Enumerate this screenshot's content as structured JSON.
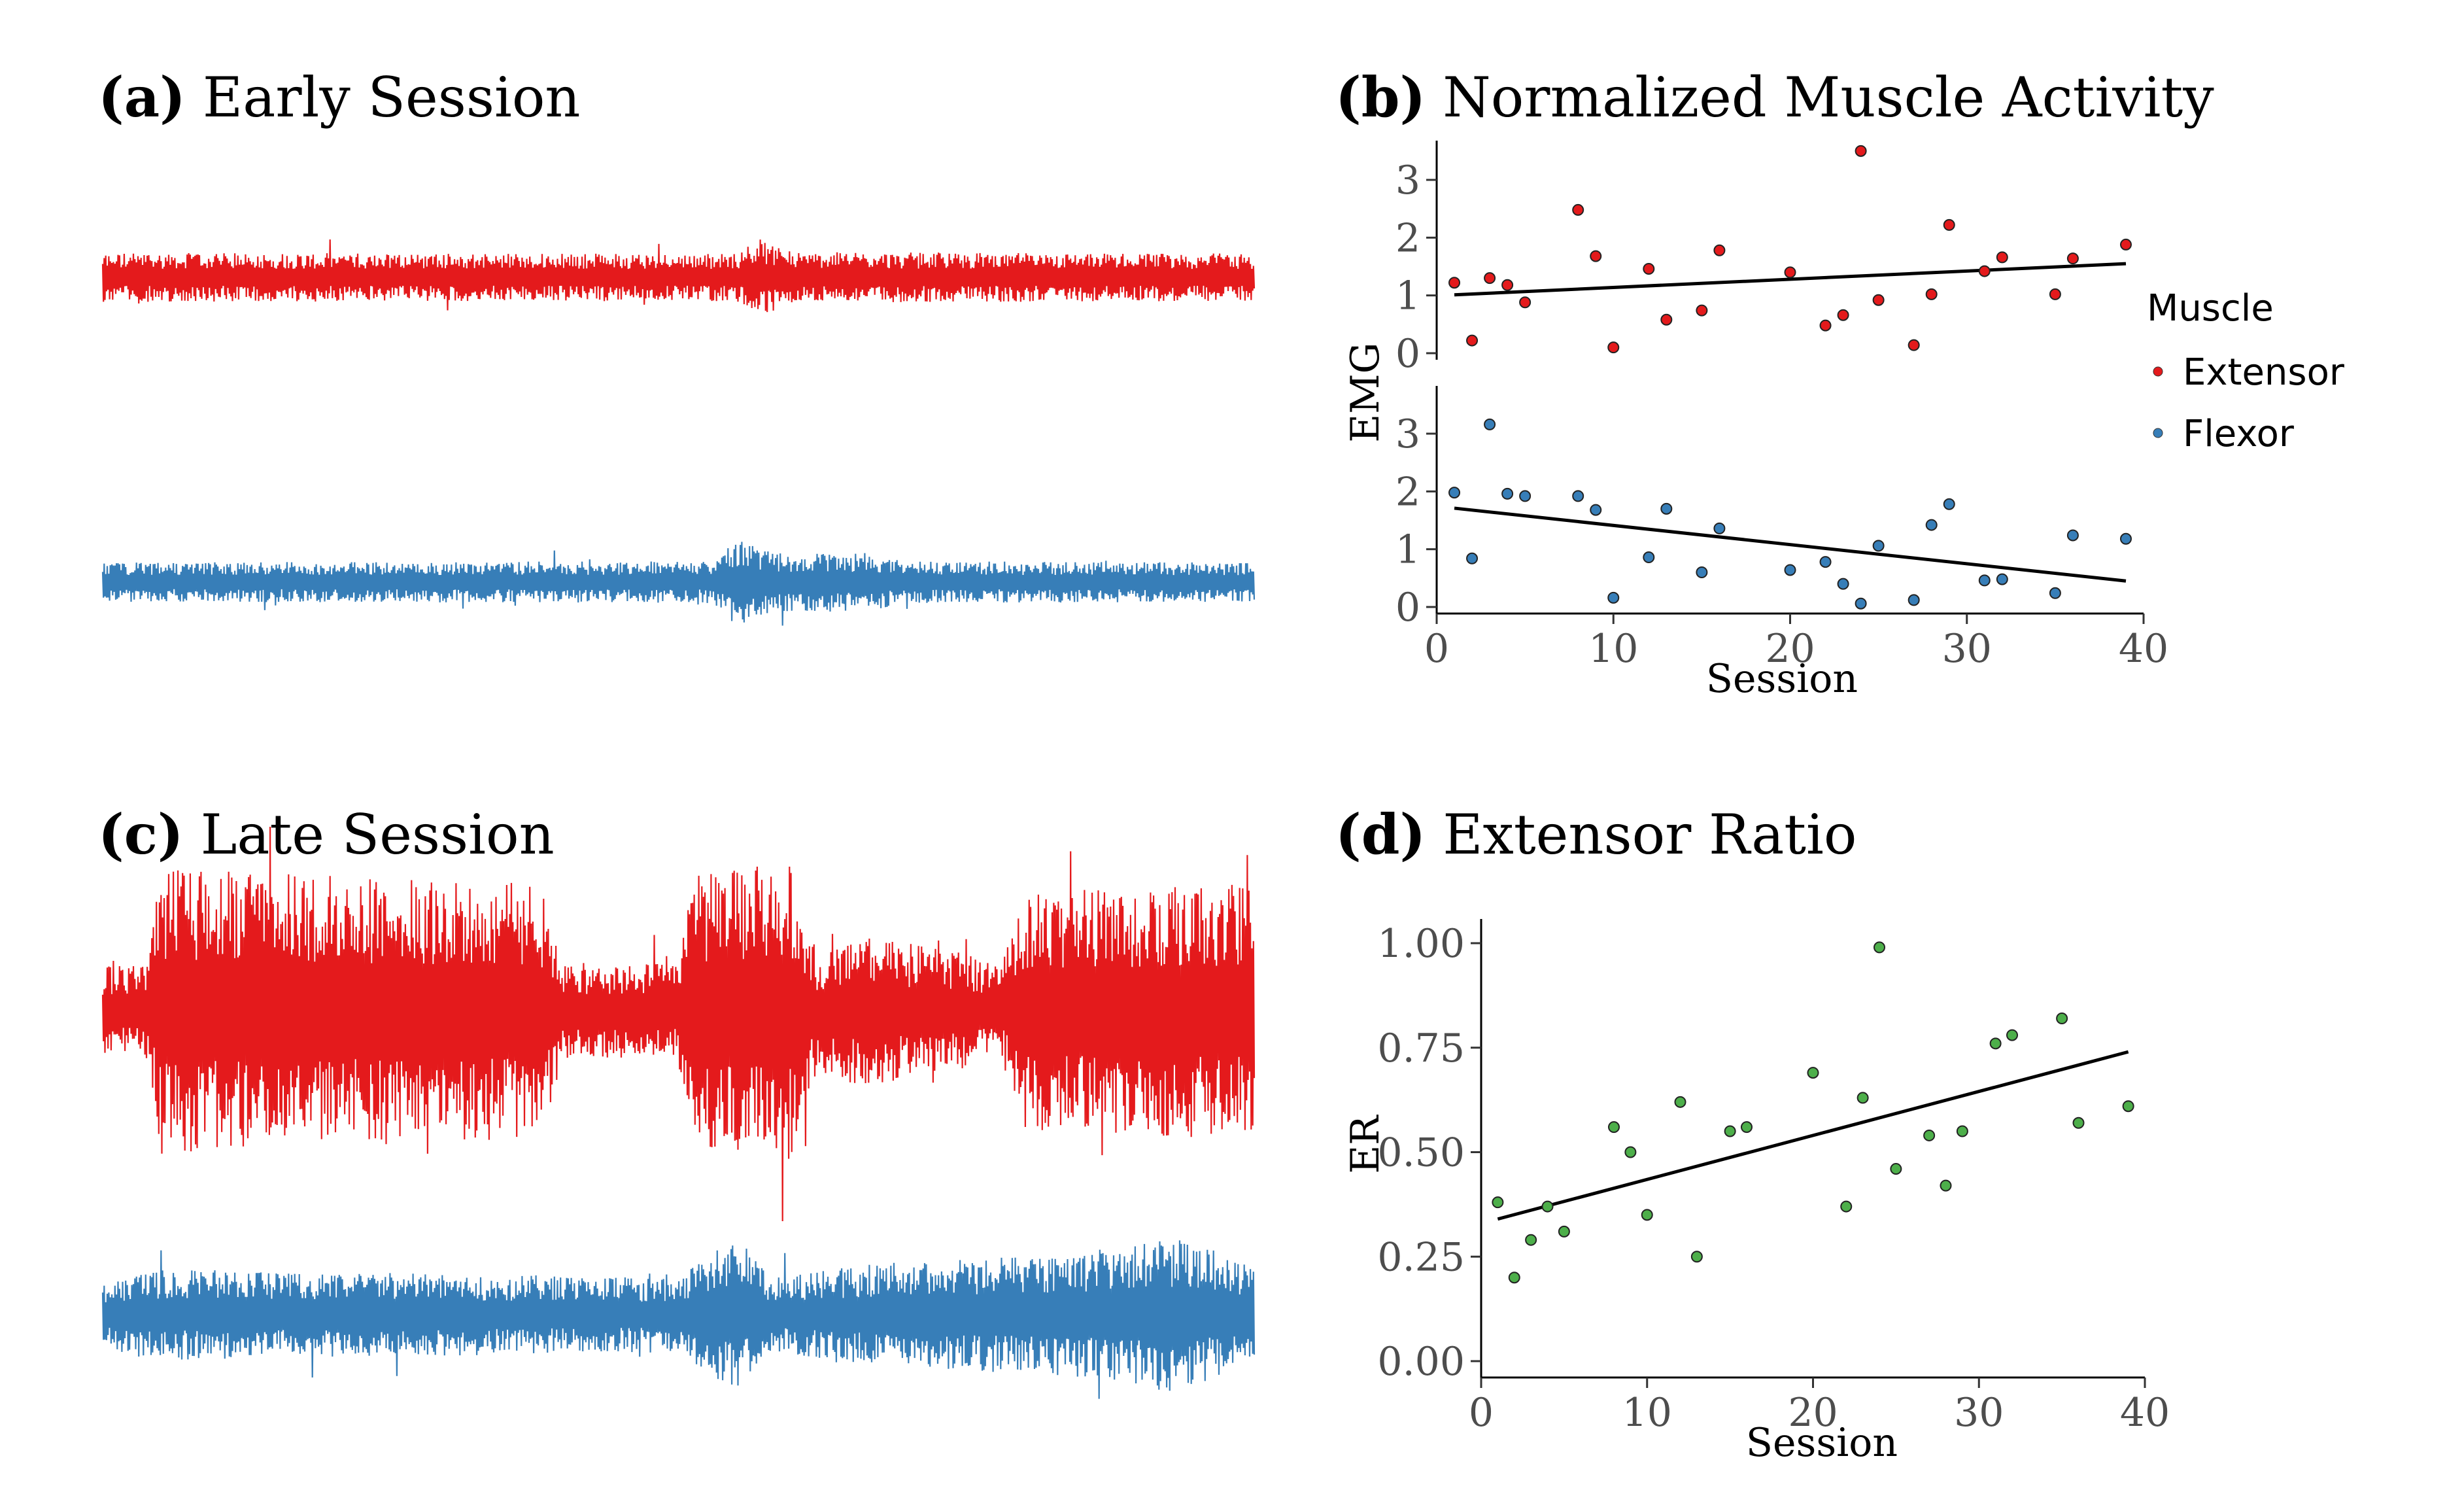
{
  "colors": {
    "extensor": "#e41a1c",
    "flexor": "#377eb8",
    "ratio": "#4daf4a",
    "trend": "#000000"
  },
  "chart_data": [
    {
      "panel": "a",
      "type": "line",
      "label": "(a)",
      "title": "Early Session",
      "series": [
        {
          "name": "Extensor",
          "segments": [
            [
              0,
              0.34
            ],
            [
              0.55,
              0.33
            ],
            [
              0.57,
              0.55
            ],
            [
              0.6,
              0.35
            ],
            [
              1,
              0.33
            ]
          ]
        },
        {
          "name": "Flexor",
          "segments": [
            [
              0,
              0.3
            ],
            [
              0.53,
              0.32
            ],
            [
              0.55,
              0.7
            ],
            [
              0.58,
              0.45
            ],
            [
              0.66,
              0.45
            ],
            [
              0.7,
              0.32
            ],
            [
              1,
              0.3
            ]
          ]
        }
      ]
    },
    {
      "panel": "b",
      "type": "scatter",
      "label": "(b)",
      "title": "Normalized Muscle Activity",
      "xlabel": "Session",
      "ylabel": "EMG",
      "xlim": [
        0,
        40
      ],
      "ylim": [
        0,
        3.6
      ],
      "xticks": [
        "0",
        "10",
        "20",
        "30",
        "40"
      ],
      "yticks": [
        "0",
        "1",
        "2",
        "3"
      ],
      "legend": {
        "title": "Muscle",
        "items": [
          "Extensor",
          "Flexor"
        ]
      },
      "series": [
        {
          "name": "Extensor",
          "x": [
            1,
            2,
            3,
            4,
            5,
            8,
            9,
            10,
            12,
            13,
            15,
            16,
            20,
            22,
            23,
            24,
            25,
            27,
            28,
            29,
            31,
            32,
            35,
            36,
            39
          ],
          "y": [
            1.22,
            0.22,
            1.3,
            1.18,
            0.88,
            2.48,
            1.68,
            0.1,
            1.46,
            0.58,
            0.74,
            1.78,
            1.4,
            0.48,
            0.66,
            3.5,
            0.92,
            0.14,
            1.02,
            2.22,
            1.42,
            1.66,
            1.02,
            1.64,
            1.88
          ],
          "trend": [
            [
              1,
              1.01
            ],
            [
              39,
              1.55
            ]
          ]
        },
        {
          "name": "Flexor",
          "x": [
            1,
            2,
            3,
            4,
            5,
            8,
            9,
            10,
            12,
            13,
            15,
            16,
            20,
            22,
            23,
            24,
            25,
            27,
            28,
            29,
            31,
            32,
            35,
            36,
            39
          ],
          "y": [
            1.98,
            0.84,
            3.16,
            1.96,
            1.92,
            1.92,
            1.68,
            0.16,
            0.86,
            1.7,
            0.6,
            1.36,
            0.64,
            0.78,
            0.4,
            0.06,
            1.06,
            0.12,
            1.42,
            1.78,
            0.46,
            0.48,
            0.24,
            1.24,
            1.18
          ],
          "trend": [
            [
              1,
              1.71
            ],
            [
              39,
              0.45
            ]
          ]
        }
      ]
    },
    {
      "panel": "c",
      "type": "line",
      "label": "(c)",
      "title": "Late Session",
      "series": [
        {
          "name": "Extensor",
          "segments": [
            [
              0,
              0.3
            ],
            [
              0.04,
              0.32
            ],
            [
              0.05,
              0.95
            ],
            [
              0.38,
              0.85
            ],
            [
              0.4,
              0.32
            ],
            [
              0.5,
              0.32
            ],
            [
              0.51,
              0.9
            ],
            [
              0.6,
              1
            ],
            [
              0.62,
              0.4
            ],
            [
              0.66,
              0.5
            ],
            [
              0.74,
              0.4
            ],
            [
              0.78,
              0.3
            ],
            [
              0.8,
              0.8
            ],
            [
              1,
              0.85
            ]
          ]
        },
        {
          "name": "Flexor",
          "segments": [
            [
              0,
              0.35
            ],
            [
              0.04,
              0.5
            ],
            [
              0.3,
              0.45
            ],
            [
              0.5,
              0.4
            ],
            [
              0.55,
              0.9
            ],
            [
              0.58,
              0.4
            ],
            [
              0.66,
              0.55
            ],
            [
              0.86,
              0.7
            ],
            [
              0.93,
              0.85
            ],
            [
              1,
              0.55
            ]
          ]
        }
      ]
    },
    {
      "panel": "d",
      "type": "scatter",
      "label": "(d)",
      "title": "Extensor Ratio",
      "xlabel": "Session",
      "ylabel": "ER",
      "xlim": [
        0,
        40
      ],
      "ylim": [
        0,
        1.04
      ],
      "xticks": [
        "0",
        "10",
        "20",
        "30",
        "40"
      ],
      "yticks": [
        "0.00",
        "0.25",
        "0.50",
        "0.75",
        "1.00"
      ],
      "series": [
        {
          "name": "ER",
          "x": [
            1,
            2,
            3,
            4,
            5,
            8,
            9,
            10,
            12,
            13,
            15,
            16,
            20,
            22,
            23,
            24,
            25,
            27,
            28,
            29,
            31,
            32,
            35,
            36,
            39
          ],
          "y": [
            0.38,
            0.2,
            0.29,
            0.37,
            0.31,
            0.56,
            0.5,
            0.35,
            0.62,
            0.25,
            0.55,
            0.56,
            0.69,
            0.37,
            0.63,
            0.99,
            0.46,
            0.54,
            0.42,
            0.55,
            0.76,
            0.78,
            0.82,
            0.57,
            0.61
          ],
          "trend": [
            [
              1,
              0.34
            ],
            [
              39,
              0.74
            ]
          ]
        }
      ]
    }
  ]
}
